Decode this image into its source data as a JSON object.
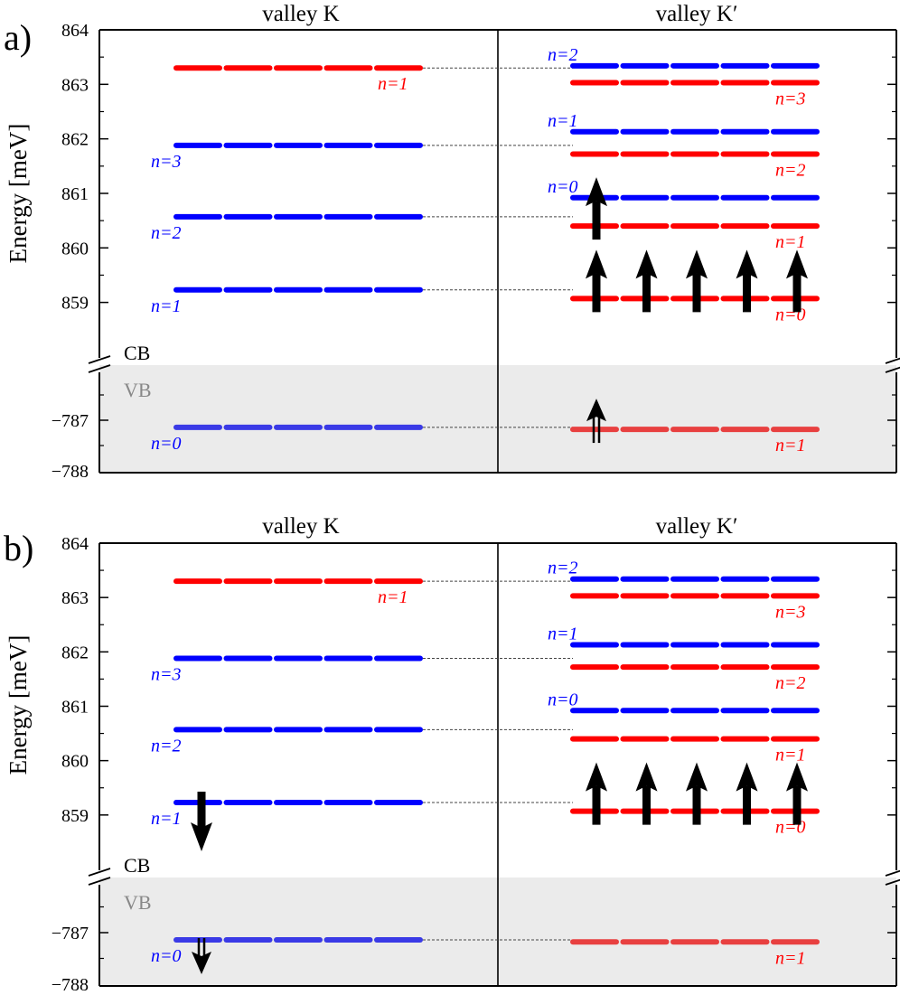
{
  "colors": {
    "blue": "#0000ff",
    "red": "#ff0000",
    "vb_blue": "#3a3ae6",
    "vb_red": "#e84040",
    "vb_fill": "#ebebeb",
    "vb_text": "#888888"
  },
  "panels": [
    {
      "tag": "a)",
      "valley_left": "valley K",
      "valley_right": "valley K′",
      "ylabel": "Energy [meV]",
      "cb_label": "CB",
      "vb_label": "VB",
      "cb_ticks": [
        864,
        863,
        862,
        861,
        860,
        859
      ],
      "vb_ticks": [
        "−787",
        "−788"
      ],
      "valley_K": [
        {
          "band": "CB",
          "energy": 863.3,
          "color": "red",
          "label": "n=1",
          "label_side": "right"
        },
        {
          "band": "CB",
          "energy": 861.88,
          "color": "blue",
          "label": "n=3",
          "label_side": "left"
        },
        {
          "band": "CB",
          "energy": 860.57,
          "color": "blue",
          "label": "n=2",
          "label_side": "left"
        },
        {
          "band": "CB",
          "energy": 859.23,
          "color": "blue",
          "label": "n=1",
          "label_side": "left"
        },
        {
          "band": "VB",
          "energy": -787.14,
          "color": "blue",
          "label": "n=0",
          "label_side": "left"
        }
      ],
      "valley_Kp": [
        {
          "band": "CB",
          "energy": 863.34,
          "color": "blue",
          "label": "n=2",
          "label_side": "left"
        },
        {
          "band": "CB",
          "energy": 863.03,
          "color": "red",
          "label": "n=3",
          "label_side": "right"
        },
        {
          "band": "CB",
          "energy": 862.13,
          "color": "blue",
          "label": "n=1",
          "label_side": "left"
        },
        {
          "band": "CB",
          "energy": 861.72,
          "color": "red",
          "label": "n=2",
          "label_side": "right"
        },
        {
          "band": "CB",
          "energy": 860.92,
          "color": "blue",
          "label": "n=0",
          "label_side": "left"
        },
        {
          "band": "CB",
          "energy": 860.4,
          "color": "red",
          "label": "n=1",
          "label_side": "right"
        },
        {
          "band": "CB",
          "energy": 859.07,
          "color": "red",
          "label": "n=0",
          "label_side": "right"
        },
        {
          "band": "VB",
          "energy": -787.18,
          "color": "red",
          "label": "n=1",
          "label_side": "right"
        }
      ],
      "connectors_K_energy": [
        863.3,
        861.88,
        860.57,
        859.23,
        -787.14
      ],
      "arrows": [
        {
          "valley": "Kp",
          "energy": 860.4,
          "direction": "up",
          "style": "filled",
          "count": 1
        },
        {
          "valley": "Kp",
          "energy": 859.07,
          "direction": "up",
          "style": "filled",
          "count": 5
        },
        {
          "valley": "Kp",
          "energy": -787.18,
          "direction": "up",
          "style": "hollow",
          "count": 1
        }
      ]
    },
    {
      "tag": "b)",
      "valley_left": "valley K",
      "valley_right": "valley K′",
      "ylabel": "Energy [meV]",
      "cb_label": "CB",
      "vb_label": "VB",
      "cb_ticks": [
        864,
        863,
        862,
        861,
        860,
        859
      ],
      "vb_ticks": [
        "−787",
        "−788"
      ],
      "valley_K": [
        {
          "band": "CB",
          "energy": 863.3,
          "color": "red",
          "label": "n=1",
          "label_side": "right"
        },
        {
          "band": "CB",
          "energy": 861.88,
          "color": "blue",
          "label": "n=3",
          "label_side": "left"
        },
        {
          "band": "CB",
          "energy": 860.57,
          "color": "blue",
          "label": "n=2",
          "label_side": "left"
        },
        {
          "band": "CB",
          "energy": 859.23,
          "color": "blue",
          "label": "n=1",
          "label_side": "left"
        },
        {
          "band": "VB",
          "energy": -787.14,
          "color": "blue",
          "label": "n=0",
          "label_side": "left"
        }
      ],
      "valley_Kp": [
        {
          "band": "CB",
          "energy": 863.34,
          "color": "blue",
          "label": "n=2",
          "label_side": "left"
        },
        {
          "band": "CB",
          "energy": 863.03,
          "color": "red",
          "label": "n=3",
          "label_side": "right"
        },
        {
          "band": "CB",
          "energy": 862.13,
          "color": "blue",
          "label": "n=1",
          "label_side": "left"
        },
        {
          "band": "CB",
          "energy": 861.72,
          "color": "red",
          "label": "n=2",
          "label_side": "right"
        },
        {
          "band": "CB",
          "energy": 860.92,
          "color": "blue",
          "label": "n=0",
          "label_side": "left"
        },
        {
          "band": "CB",
          "energy": 860.4,
          "color": "red",
          "label": "n=1",
          "label_side": "right"
        },
        {
          "band": "CB",
          "energy": 859.07,
          "color": "red",
          "label": "n=0",
          "label_side": "right"
        },
        {
          "band": "VB",
          "energy": -787.18,
          "color": "red",
          "label": "n=1",
          "label_side": "right"
        }
      ],
      "connectors_K_energy": [
        863.3,
        861.88,
        860.57,
        859.23,
        -787.14
      ],
      "arrows": [
        {
          "valley": "K",
          "energy": 859.23,
          "direction": "down",
          "style": "filled",
          "count": 1
        },
        {
          "valley": "Kp",
          "energy": 859.07,
          "direction": "up",
          "style": "filled",
          "count": 5
        },
        {
          "valley": "K",
          "energy": -787.14,
          "direction": "down",
          "style": "hollow",
          "count": 1
        }
      ]
    }
  ]
}
